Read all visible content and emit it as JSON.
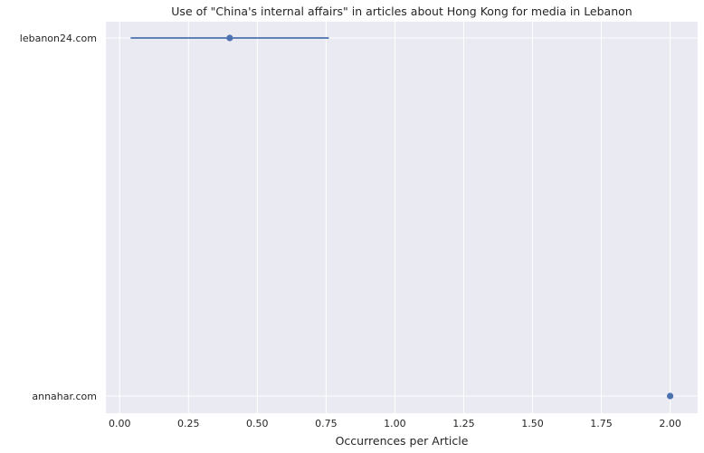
{
  "chart_data": {
    "type": "scatter",
    "title": "Use of \"China's internal affairs\" in articles about Hong Kong for media in Lebanon",
    "xlabel": "Occurrences per Article",
    "ylabel": "",
    "xlim": [
      -0.05,
      2.1
    ],
    "x_ticks": [
      "0.00",
      "0.25",
      "0.50",
      "0.75",
      "1.00",
      "1.25",
      "1.50",
      "1.75",
      "2.00"
    ],
    "grid": true,
    "categories": [
      "lebanon24.com",
      "annahar.com"
    ],
    "points": [
      {
        "category": "lebanon24.com",
        "value": 0.4,
        "ci_low": 0.04,
        "ci_high": 0.76
      },
      {
        "category": "annahar.com",
        "value": 2.0,
        "ci_low": 2.0,
        "ci_high": 2.0
      }
    ],
    "colors": {
      "background": "#eaeaf2",
      "grid": "#ffffff",
      "series": "#4c72b0"
    }
  }
}
